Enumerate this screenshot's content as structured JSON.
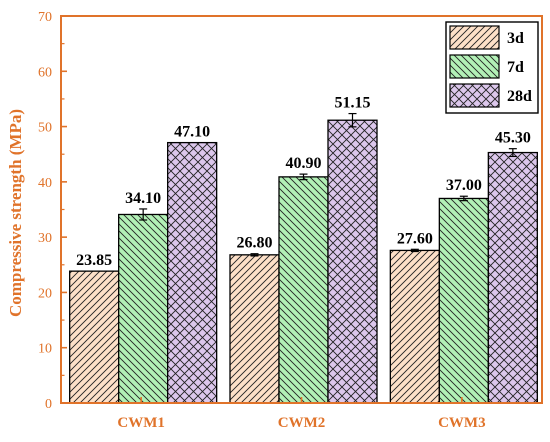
{
  "chart_data": {
    "type": "bar",
    "title": "",
    "xlabel": "",
    "ylabel": "Compressive strength (MPa)",
    "categories": [
      "CWM1",
      "CWM2",
      "CWM3"
    ],
    "ylim": [
      0,
      70
    ],
    "yticks": [
      0,
      10,
      20,
      30,
      40,
      50,
      60,
      70
    ],
    "series": [
      {
        "name": "3d",
        "values": [
          23.85,
          26.8,
          27.6
        ],
        "errors": [
          0.0,
          0.2,
          0.2
        ],
        "labels": [
          "23.85",
          "26.80",
          "27.60"
        ],
        "fill": "#fde0c8",
        "hatch": "diagonal-right"
      },
      {
        "name": "7d",
        "values": [
          34.1,
          40.9,
          37.0
        ],
        "errors": [
          1.0,
          0.5,
          0.4
        ],
        "labels": [
          "34.10",
          "40.90",
          "37.00"
        ],
        "fill": "#b2f0b6",
        "hatch": "diagonal-left"
      },
      {
        "name": "28d",
        "values": [
          47.1,
          51.15,
          45.3
        ],
        "errors": [
          0.0,
          1.2,
          0.7
        ],
        "labels": [
          "47.10",
          "51.15",
          "45.30"
        ],
        "fill": "#dcc7ec",
        "hatch": "cross"
      }
    ],
    "legend_position": "top-right",
    "axis_color": "#e0732a",
    "grid": false
  }
}
